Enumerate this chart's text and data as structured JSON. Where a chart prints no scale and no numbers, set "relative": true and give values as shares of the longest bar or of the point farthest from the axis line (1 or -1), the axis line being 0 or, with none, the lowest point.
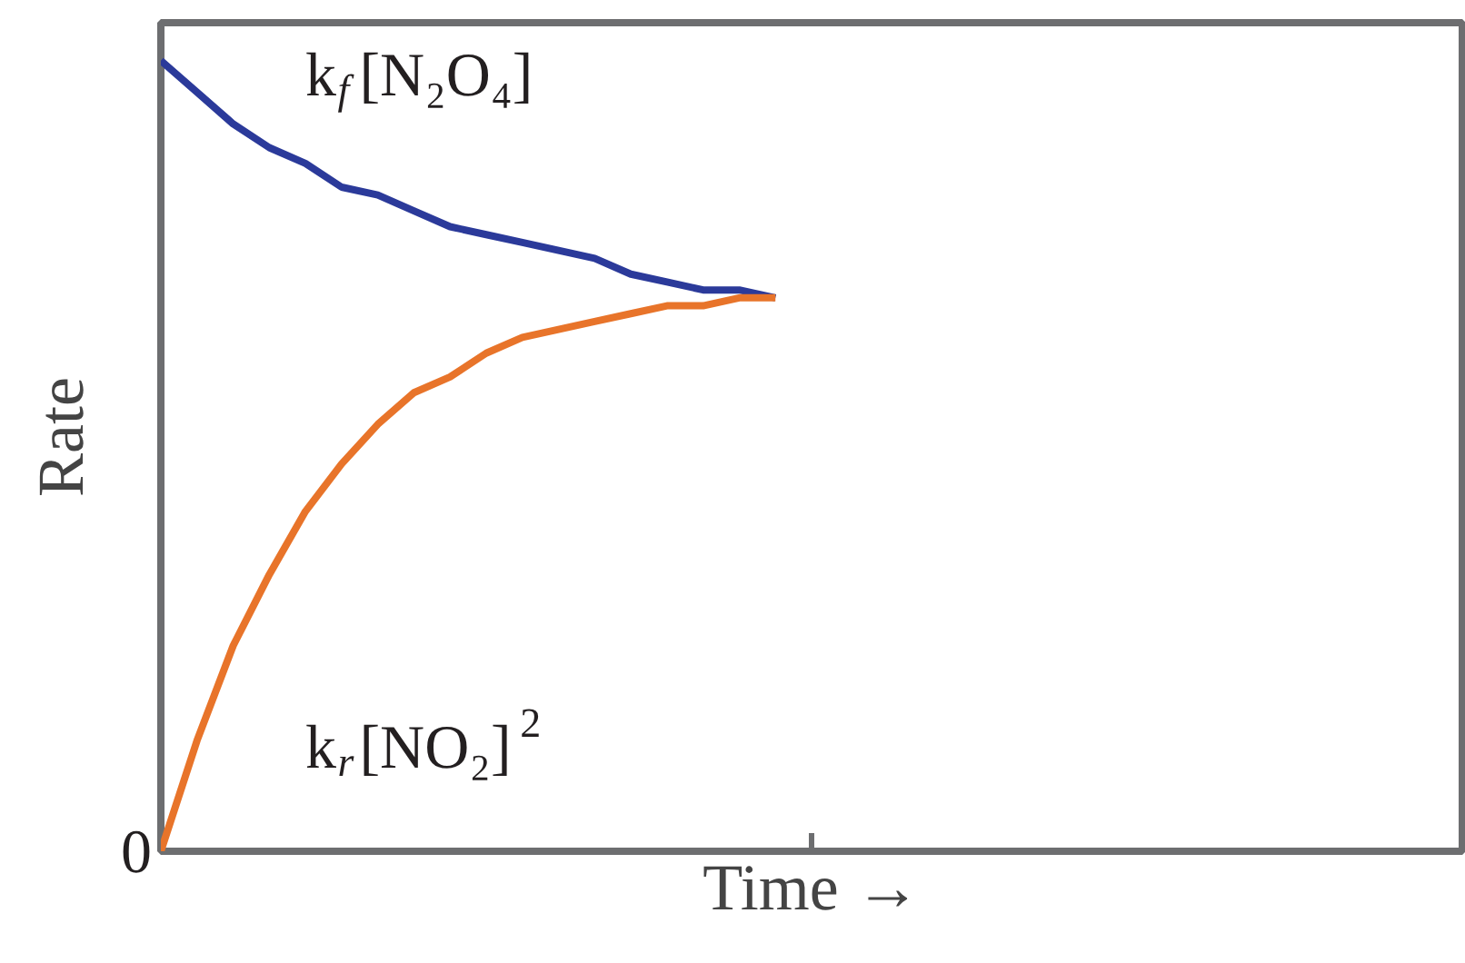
{
  "chart_data": {
    "type": "line",
    "relative": true,
    "xlabel": "Time →",
    "ylabel": "Rate",
    "categories": [
      null,
      null,
      null,
      null,
      null,
      null,
      null,
      null,
      null,
      null,
      null,
      null,
      null,
      null,
      null,
      null,
      null,
      null,
      null,
      null,
      null,
      null,
      null,
      null,
      null,
      null,
      null,
      null,
      null,
      null,
      null,
      null,
      null,
      null,
      null,
      null,
      null
    ],
    "series": [
      {
        "name": "k$_{f}$ [N₂O₄]",
        "color": "#2b3a9a",
        "values": [
          1.0,
          0.96,
          0.92,
          0.89,
          0.87,
          0.84,
          0.83,
          0.81,
          0.79,
          0.78,
          0.77,
          0.76,
          0.75,
          0.73,
          0.72,
          0.71,
          0.71,
          0.7,
          null,
          null,
          null,
          null,
          null,
          null,
          null,
          null,
          null,
          null,
          null,
          null,
          null,
          null,
          null,
          null,
          null,
          null,
          null
        ]
      },
      {
        "name": "k$_{r}$[NO₂]$^{2}$",
        "color": "#e8742a",
        "values": [
          0.0,
          0.14,
          0.26,
          0.35,
          0.43,
          0.49,
          0.54,
          0.58,
          0.6,
          0.63,
          0.65,
          0.66,
          0.67,
          0.68,
          0.69,
          0.69,
          0.7,
          0.7,
          null,
          null,
          null,
          null,
          null,
          null,
          null,
          null,
          null,
          null,
          null,
          null,
          null,
          null,
          null,
          null,
          null,
          null,
          null
        ]
      }
    ],
    "annotations": [
      "0"
    ],
    "grid": false,
    "marker": "none",
    "line_style": "solid"
  }
}
